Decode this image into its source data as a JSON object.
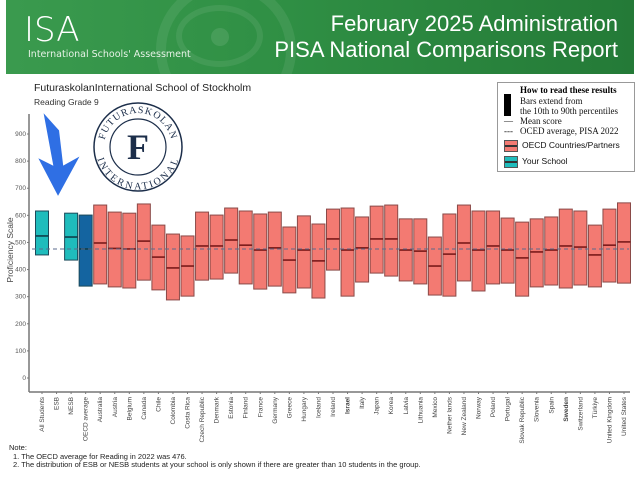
{
  "header": {
    "org_logo": "ISA",
    "org_name": "International Schools' Assessment",
    "title_line1": "February 2025 Administration",
    "title_line2": "PISA National Comparisons Report",
    "background_color": "#2f8f44"
  },
  "school": {
    "name": "FuturaskolanInternational School of Stockholm",
    "subject_grade": "Reading Grade 9",
    "logo_top_text": "FUTURASKOLAN",
    "logo_bottom_text": "INTERNATIONAL",
    "logo_letter": "F"
  },
  "legend": {
    "heading": "How to read these results",
    "bar_text_line1": "Bars extend from",
    "bar_text_line2": "the 10th to 90th percentiles",
    "mean_text": "Mean score",
    "oecd_text": "OCED average, PISA 2022",
    "oecd_countries_label": "OECD Countries/Partners",
    "your_school_label": "Your School",
    "mean_symbol": "—",
    "oecd_symbol": "---"
  },
  "notes": {
    "heading": "Note:",
    "items": [
      "1. The OECD average for Reading in 2022 was 476.",
      "2. The distribution of ESB or NESB students at your school is only shown if there are greater than 10 students in the group."
    ]
  },
  "icons": {
    "arrow": "arrow-down-icon",
    "school_logo": "school-crest-icon"
  },
  "chart_data": {
    "type": "box-range",
    "title": "Reading Grade 9",
    "ylabel": "Proficiency Scale",
    "xlabel": "",
    "ylim": [
      0,
      960
    ],
    "yticks": [
      0,
      100,
      200,
      300,
      400,
      500,
      600,
      700,
      800,
      900
    ],
    "grid": false,
    "legend_position": "top-right",
    "reference_line": {
      "label": "OECD average, PISA 2022",
      "value": 476
    },
    "colors": {
      "your_school": "#1fbcbc",
      "oecd_average": "#1464a0",
      "countries": "#f37a72",
      "mean_line": "#7a1a1a",
      "reference_line": "#5b6b8c"
    },
    "categories": [
      {
        "label": "All Students",
        "group": "your_school",
        "p10": 454,
        "mean": 524,
        "p90": 616,
        "bold": false
      },
      {
        "label": "ESB",
        "group": "your_school",
        "p10": null,
        "mean": null,
        "p90": null,
        "bold": false
      },
      {
        "label": "NESB",
        "group": "your_school",
        "p10": 435,
        "mean": 520,
        "p90": 608,
        "bold": false
      },
      {
        "label": "OECD average",
        "group": "oecd_average",
        "p10": 339,
        "mean": 476,
        "p90": 601,
        "bold": false
      },
      {
        "label": "Australia",
        "group": "countries",
        "p10": 347,
        "mean": 498,
        "p90": 638,
        "bold": false
      },
      {
        "label": "Austria",
        "group": "countries",
        "p10": 336,
        "mean": 478,
        "p90": 612,
        "bold": false
      },
      {
        "label": "Belgium",
        "group": "countries",
        "p10": 332,
        "mean": 476,
        "p90": 608,
        "bold": false
      },
      {
        "label": "Canada",
        "group": "countries",
        "p10": 361,
        "mean": 505,
        "p90": 642,
        "bold": false
      },
      {
        "label": "Chile",
        "group": "countries",
        "p10": 325,
        "mean": 446,
        "p90": 564,
        "bold": false
      },
      {
        "label": "Colombia",
        "group": "countries",
        "p10": 288,
        "mean": 406,
        "p90": 531,
        "bold": false
      },
      {
        "label": "Costa Rica",
        "group": "countries",
        "p10": 302,
        "mean": 413,
        "p90": 524,
        "bold": false
      },
      {
        "label": "Czech Republic",
        "group": "countries",
        "p10": 361,
        "mean": 487,
        "p90": 612,
        "bold": false
      },
      {
        "label": "Denmark",
        "group": "countries",
        "p10": 365,
        "mean": 487,
        "p90": 601,
        "bold": false
      },
      {
        "label": "Estonia",
        "group": "countries",
        "p10": 387,
        "mean": 509,
        "p90": 627,
        "bold": false
      },
      {
        "label": "Finland",
        "group": "countries",
        "p10": 347,
        "mean": 490,
        "p90": 616,
        "bold": false
      },
      {
        "label": "France",
        "group": "countries",
        "p10": 328,
        "mean": 472,
        "p90": 605,
        "bold": false
      },
      {
        "label": "Germany",
        "group": "countries",
        "p10": 339,
        "mean": 480,
        "p90": 612,
        "bold": false
      },
      {
        "label": "Greece",
        "group": "countries",
        "p10": 314,
        "mean": 435,
        "p90": 557,
        "bold": false
      },
      {
        "label": "Hungary",
        "group": "countries",
        "p10": 332,
        "mean": 472,
        "p90": 598,
        "bold": false
      },
      {
        "label": "Iceland",
        "group": "countries",
        "p10": 295,
        "mean": 432,
        "p90": 568,
        "bold": false
      },
      {
        "label": "Ireland",
        "group": "countries",
        "p10": 398,
        "mean": 513,
        "p90": 623,
        "bold": false
      },
      {
        "label": "Israel",
        "group": "countries",
        "p10": 302,
        "mean": 472,
        "p90": 627,
        "bold": true
      },
      {
        "label": "Italy",
        "group": "countries",
        "p10": 354,
        "mean": 480,
        "p90": 594,
        "bold": false
      },
      {
        "label": "Japan",
        "group": "countries",
        "p10": 387,
        "mean": 513,
        "p90": 634,
        "bold": false
      },
      {
        "label": "Korea",
        "group": "countries",
        "p10": 376,
        "mean": 513,
        "p90": 638,
        "bold": false
      },
      {
        "label": "Latvia",
        "group": "countries",
        "p10": 358,
        "mean": 472,
        "p90": 587,
        "bold": false
      },
      {
        "label": "Lithuania",
        "group": "countries",
        "p10": 347,
        "mean": 468,
        "p90": 587,
        "bold": false
      },
      {
        "label": "Mexico",
        "group": "countries",
        "p10": 306,
        "mean": 413,
        "p90": 520,
        "bold": false
      },
      {
        "label": "Nether lands",
        "group": "countries",
        "p10": 302,
        "mean": 457,
        "p90": 605,
        "bold": false
      },
      {
        "label": "New Zealand",
        "group": "countries",
        "p10": 358,
        "mean": 498,
        "p90": 638,
        "bold": false
      },
      {
        "label": "Norway",
        "group": "countries",
        "p10": 321,
        "mean": 472,
        "p90": 616,
        "bold": false
      },
      {
        "label": "Poland",
        "group": "countries",
        "p10": 347,
        "mean": 487,
        "p90": 616,
        "bold": false
      },
      {
        "label": "Portugal",
        "group": "countries",
        "p10": 350,
        "mean": 472,
        "p90": 590,
        "bold": false
      },
      {
        "label": "Slovak Republic",
        "group": "countries",
        "p10": 302,
        "mean": 443,
        "p90": 575,
        "bold": false
      },
      {
        "label": "Slovenia",
        "group": "countries",
        "p10": 336,
        "mean": 465,
        "p90": 587,
        "bold": false
      },
      {
        "label": "Spain",
        "group": "countries",
        "p10": 343,
        "mean": 472,
        "p90": 594,
        "bold": false
      },
      {
        "label": "Sweden",
        "group": "countries",
        "p10": 332,
        "mean": 487,
        "p90": 623,
        "bold": true
      },
      {
        "label": "Switzerland",
        "group": "countries",
        "p10": 343,
        "mean": 483,
        "p90": 616,
        "bold": false
      },
      {
        "label": "Türkiye",
        "group": "countries",
        "p10": 336,
        "mean": 454,
        "p90": 564,
        "bold": false
      },
      {
        "label": "United Kingdom",
        "group": "countries",
        "p10": 354,
        "mean": 490,
        "p90": 623,
        "bold": false
      },
      {
        "label": "United States",
        "group": "countries",
        "p10": 350,
        "mean": 502,
        "p90": 646,
        "bold": false
      }
    ]
  }
}
